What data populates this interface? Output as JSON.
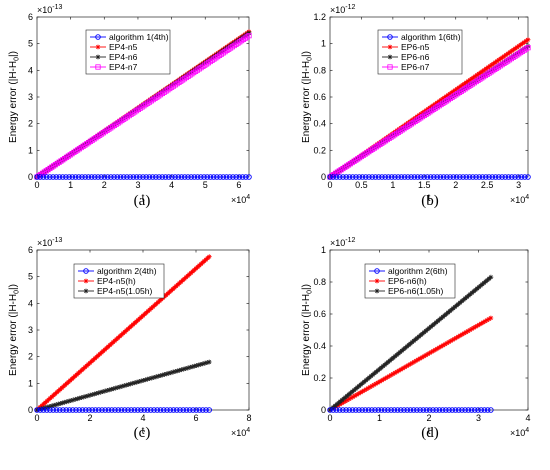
{
  "chart_data": [
    {
      "type": "line",
      "panel_label": "(a)",
      "xlabel": "t",
      "ylabel": "Energy error (|H-H",
      "ylabel_sub": "0",
      "ylabel_tail": "|)",
      "x_exponent_label": "×10",
      "x_exponent": "4",
      "y_exponent_label": "×10",
      "y_exponent": "-13",
      "xlim": [
        0,
        6.3
      ],
      "ylim": [
        0,
        6
      ],
      "xticks": [
        0,
        1,
        2,
        3,
        4,
        5,
        6
      ],
      "yticks": [
        0,
        1,
        2,
        3,
        4,
        5,
        6
      ],
      "legend_position": "top-center",
      "series": [
        {
          "name": "algorithm 1(4th)",
          "color": "#0000ff",
          "marker": "circle",
          "x": [
            0,
            6.3
          ],
          "y": [
            0,
            0
          ]
        },
        {
          "name": "EP4-n5",
          "color": "#ff0000",
          "marker": "star",
          "x": [
            0,
            6.3
          ],
          "y": [
            0,
            5.45
          ]
        },
        {
          "name": "EP4-n6",
          "color": "#222222",
          "marker": "star",
          "x": [
            0,
            6.3
          ],
          "y": [
            0,
            5.4
          ]
        },
        {
          "name": "EP4-n7",
          "color": "#ff00ff",
          "marker": "square",
          "x": [
            0,
            6.3
          ],
          "y": [
            0,
            5.3
          ]
        }
      ]
    },
    {
      "type": "line",
      "panel_label": "(b)",
      "xlabel": "t",
      "ylabel": "Energy error (|H-H",
      "ylabel_sub": "0",
      "ylabel_tail": "|)",
      "x_exponent_label": "×10",
      "x_exponent": "4",
      "y_exponent_label": "×10",
      "y_exponent": "-12",
      "xlim": [
        0,
        3.15
      ],
      "ylim": [
        0,
        1.2
      ],
      "xticks": [
        0,
        0.5,
        1,
        1.5,
        2,
        2.5,
        3
      ],
      "yticks": [
        0,
        0.2,
        0.4,
        0.6,
        0.8,
        1,
        1.2
      ],
      "legend_position": "top-center",
      "series": [
        {
          "name": "algorithm 1(6th)",
          "color": "#0000ff",
          "marker": "circle",
          "x": [
            0,
            3.15
          ],
          "y": [
            0,
            0
          ]
        },
        {
          "name": "EP6-n5",
          "color": "#ff0000",
          "marker": "star",
          "x": [
            0,
            3.15
          ],
          "y": [
            0,
            1.03
          ]
        },
        {
          "name": "EP6-n6",
          "color": "#222222",
          "marker": "star",
          "x": [
            0,
            3.15
          ],
          "y": [
            0,
            0.98
          ]
        },
        {
          "name": "EP6-n7",
          "color": "#ff00ff",
          "marker": "square",
          "x": [
            0,
            3.15
          ],
          "y": [
            0,
            0.97
          ]
        }
      ]
    },
    {
      "type": "line",
      "panel_label": "(c)",
      "xlabel": "t",
      "ylabel": "Energy error (|H-H",
      "ylabel_sub": "0",
      "ylabel_tail": "|)",
      "x_exponent_label": "×10",
      "x_exponent": "4",
      "y_exponent_label": "×10",
      "y_exponent": "-13",
      "xlim": [
        0,
        8
      ],
      "ylim": [
        0,
        6
      ],
      "xticks": [
        0,
        2,
        4,
        6,
        8
      ],
      "yticks": [
        0,
        1,
        2,
        3,
        4,
        5,
        6
      ],
      "legend_position": "top-left",
      "series": [
        {
          "name": "algorithm 2(4th)",
          "color": "#0000ff",
          "marker": "circle",
          "x": [
            0,
            6.5
          ],
          "y": [
            0,
            0
          ]
        },
        {
          "name": "EP4-n5(h)",
          "color": "#ff0000",
          "marker": "star",
          "x": [
            0,
            6.5
          ],
          "y": [
            0,
            5.75
          ]
        },
        {
          "name": "EP4-n5(1.05h)",
          "color": "#222222",
          "marker": "star",
          "x": [
            0,
            6.5
          ],
          "y": [
            0,
            1.8
          ]
        }
      ]
    },
    {
      "type": "line",
      "panel_label": "(d)",
      "xlabel": "t",
      "ylabel": "Energy error (|H-H",
      "ylabel_sub": "0",
      "ylabel_tail": "|)",
      "x_exponent_label": "×10",
      "x_exponent": "4",
      "y_exponent_label": "×10",
      "y_exponent": "-12",
      "xlim": [
        0,
        4
      ],
      "ylim": [
        0,
        1
      ],
      "xticks": [
        0,
        1,
        2,
        3,
        4
      ],
      "yticks": [
        0,
        0.2,
        0.4,
        0.6,
        0.8,
        1
      ],
      "legend_position": "top-left",
      "series": [
        {
          "name": "algorithm 2(6th)",
          "color": "#0000ff",
          "marker": "circle",
          "x": [
            0,
            3.25
          ],
          "y": [
            0,
            0
          ]
        },
        {
          "name": "EP6-n6(h)",
          "color": "#ff0000",
          "marker": "star",
          "x": [
            0,
            3.25
          ],
          "y": [
            0,
            0.575
          ]
        },
        {
          "name": "EP6-n6(1.05h)",
          "color": "#222222",
          "marker": "star",
          "x": [
            0,
            3.25
          ],
          "y": [
            0,
            0.83
          ]
        }
      ]
    }
  ]
}
